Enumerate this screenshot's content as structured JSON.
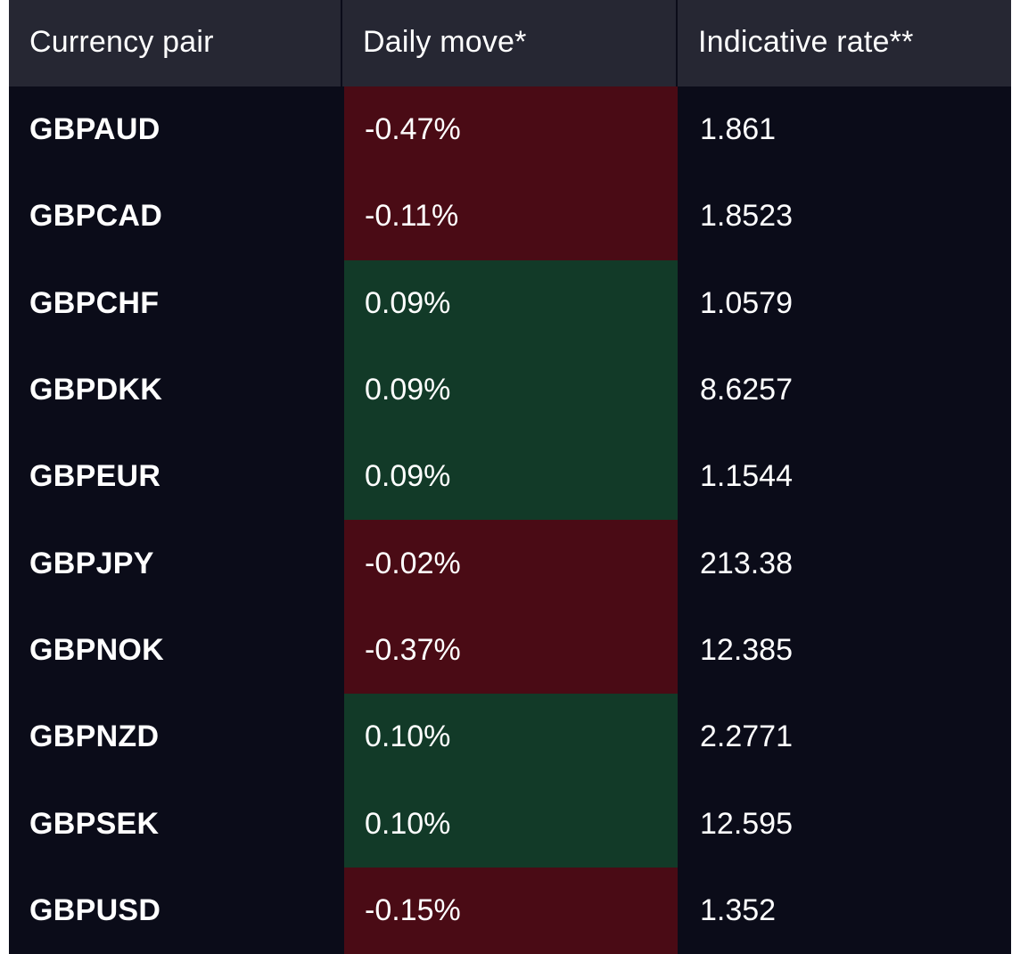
{
  "table": {
    "headers": {
      "pair": "Currency pair",
      "move": "Daily move*",
      "rate": "Indicative rate**"
    },
    "colors": {
      "background": "#0b0c19",
      "header_background": "#262733",
      "negative": "#4a0b15",
      "positive": "#123a28",
      "text": "#ffffff"
    },
    "rows": [
      {
        "pair": "GBPAUD",
        "move": "-0.47%",
        "direction": "negative",
        "rate": "1.861"
      },
      {
        "pair": "GBPCAD",
        "move": "-0.11%",
        "direction": "negative",
        "rate": "1.8523"
      },
      {
        "pair": "GBPCHF",
        "move": "0.09%",
        "direction": "positive",
        "rate": "1.0579"
      },
      {
        "pair": "GBPDKK",
        "move": "0.09%",
        "direction": "positive",
        "rate": "8.6257"
      },
      {
        "pair": "GBPEUR",
        "move": "0.09%",
        "direction": "positive",
        "rate": "1.1544"
      },
      {
        "pair": "GBPJPY",
        "move": "-0.02%",
        "direction": "negative",
        "rate": "213.38"
      },
      {
        "pair": "GBPNOK",
        "move": "-0.37%",
        "direction": "negative",
        "rate": "12.385"
      },
      {
        "pair": "GBPNZD",
        "move": "0.10%",
        "direction": "positive",
        "rate": "2.2771"
      },
      {
        "pair": "GBPSEK",
        "move": "0.10%",
        "direction": "positive",
        "rate": "12.595"
      },
      {
        "pair": "GBPUSD",
        "move": "-0.15%",
        "direction": "negative",
        "rate": "1.352"
      }
    ]
  }
}
